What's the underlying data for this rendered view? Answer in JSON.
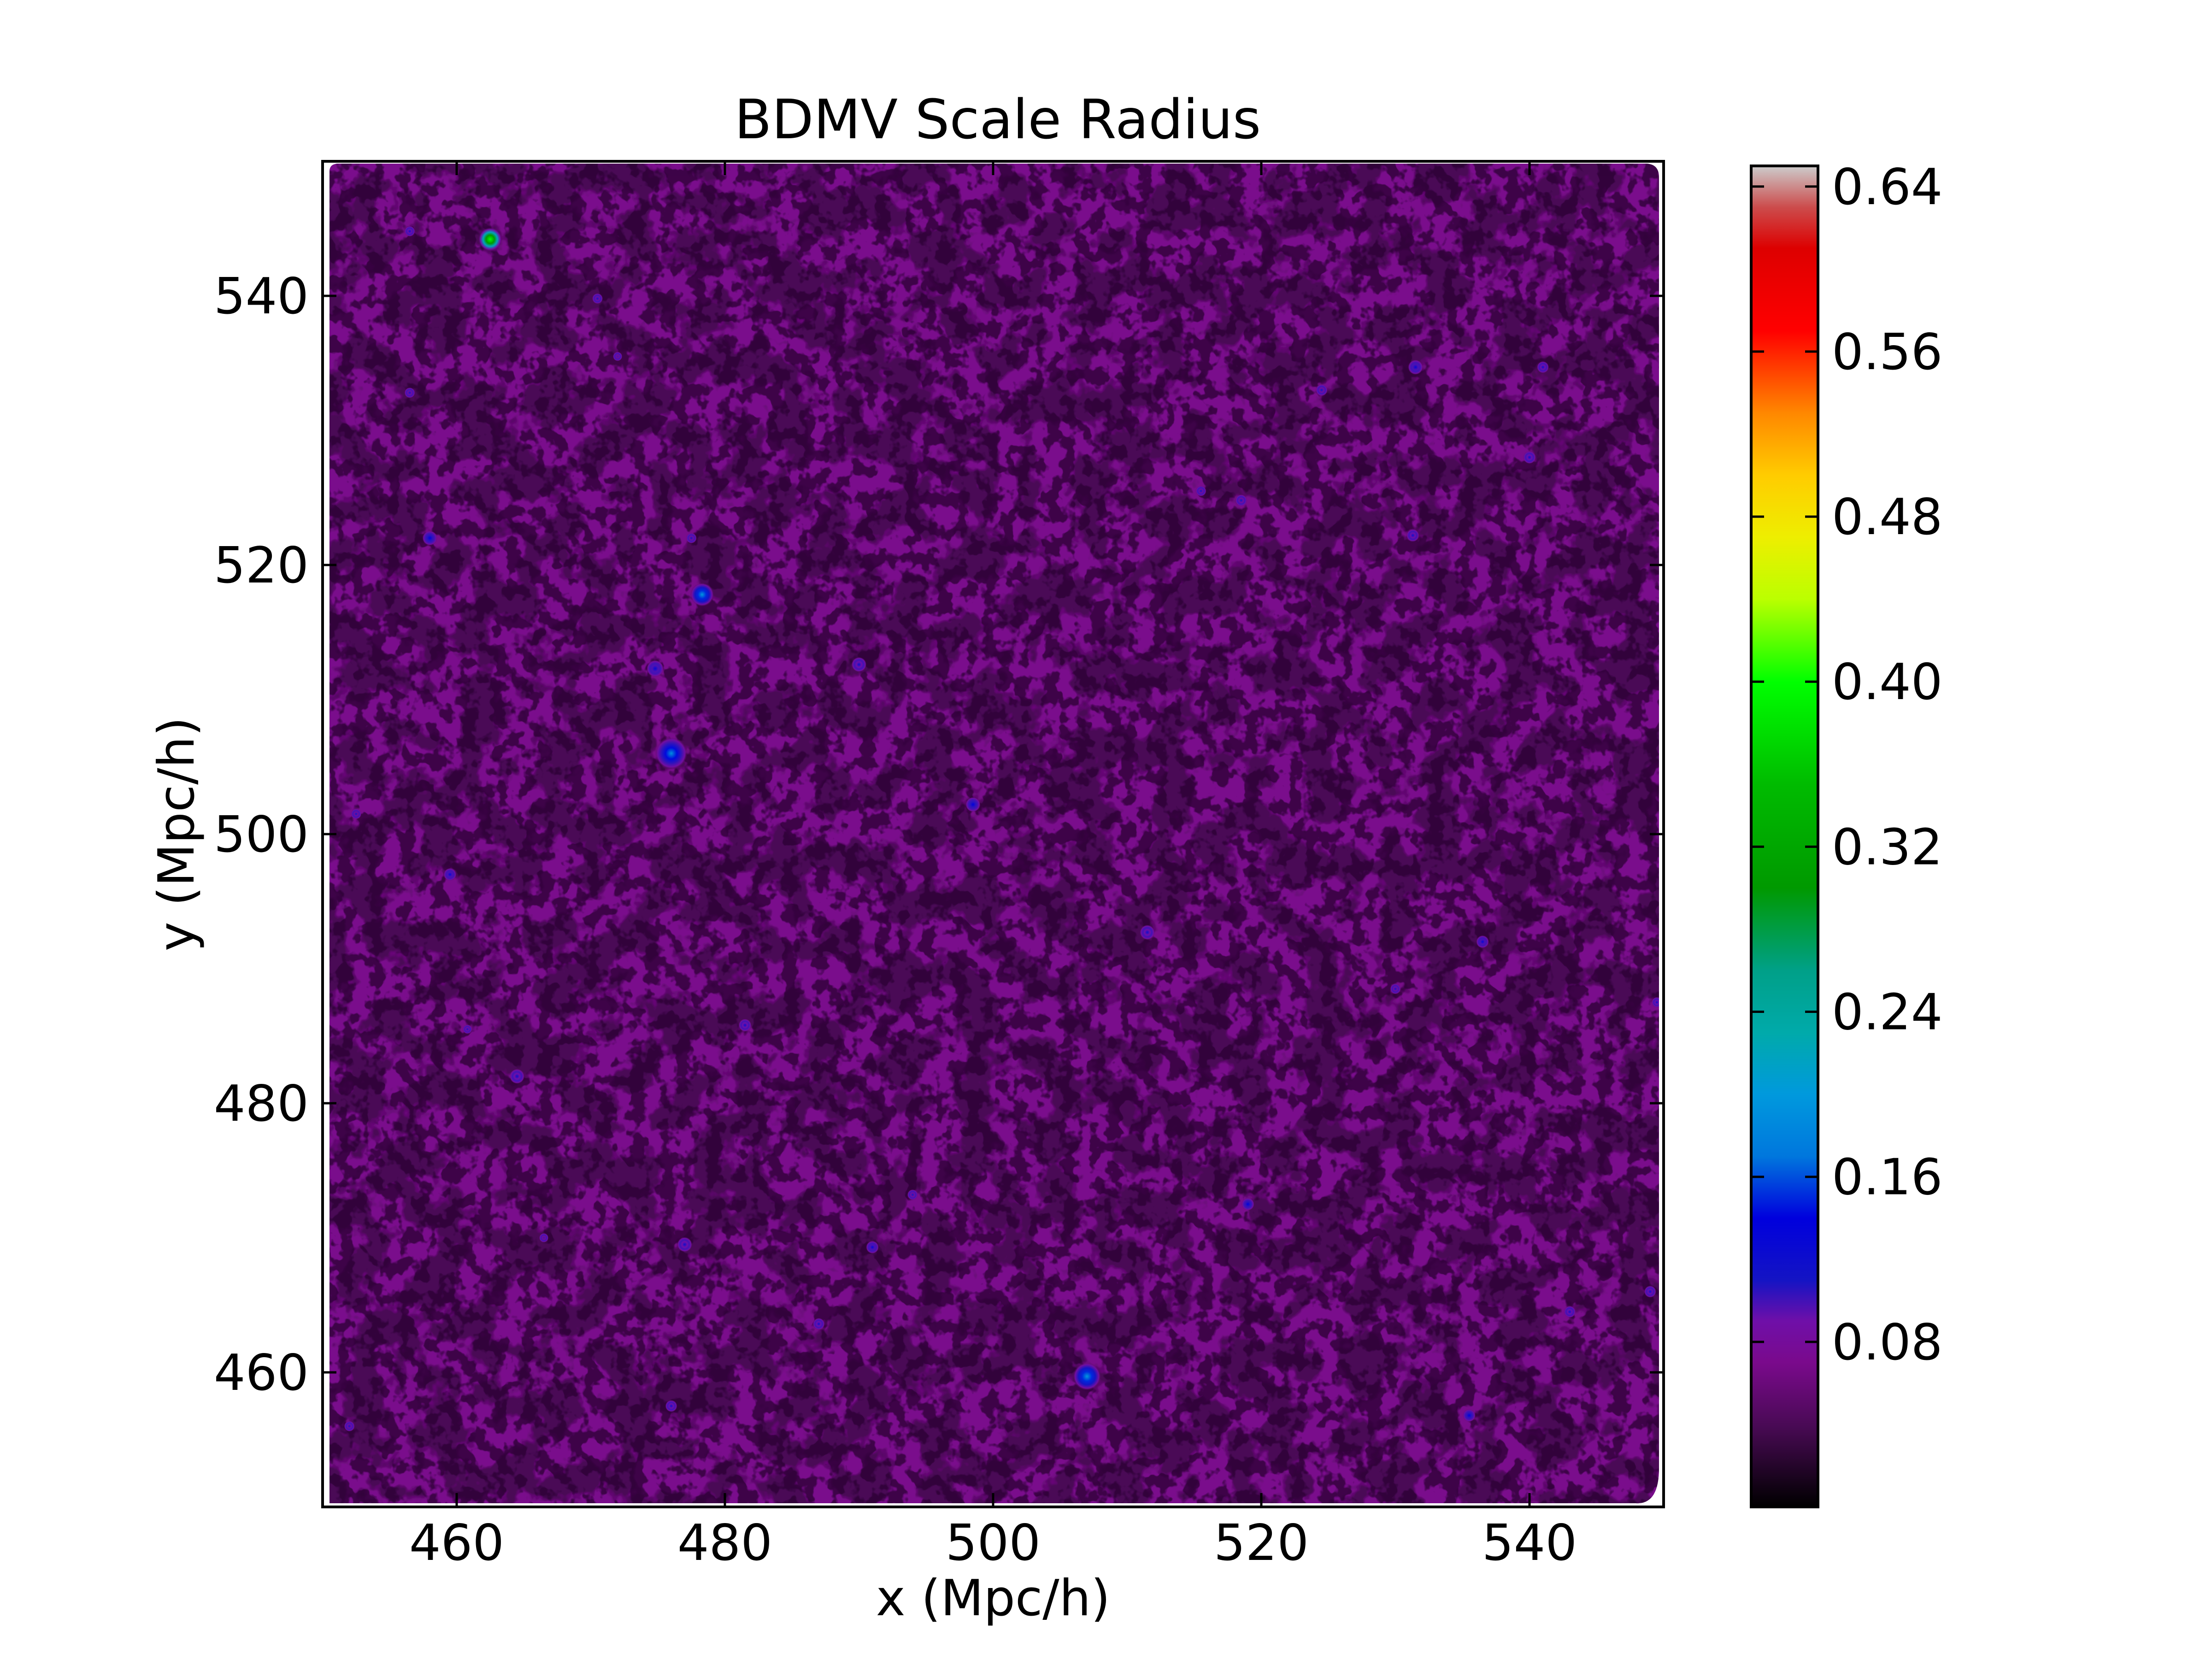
{
  "chart_data": {
    "type": "heatmap",
    "title": "BDMV Scale Radius",
    "xlabel": "x (Mpc/h)",
    "ylabel": "y (Mpc/h)",
    "xlim": [
      450,
      550
    ],
    "ylim": [
      450,
      550
    ],
    "xticks": [
      460,
      480,
      500,
      520,
      540
    ],
    "yticks": [
      460,
      480,
      500,
      520,
      540
    ],
    "grid": false,
    "colorbar": {
      "vmin": 0.0,
      "vmax": 0.65,
      "ticks": [
        0.08,
        0.16,
        0.24,
        0.32,
        0.4,
        0.48,
        0.56,
        0.64
      ],
      "tick_labels": [
        "0.08",
        "0.16",
        "0.24",
        "0.32",
        "0.40",
        "0.48",
        "0.56",
        "0.64"
      ],
      "colormap": "nipy_spectral",
      "colormap_stops": [
        {
          "v": 0.0,
          "color": "#000000"
        },
        {
          "v": 0.04,
          "color": "#4a0a56"
        },
        {
          "v": 0.07,
          "color": "#7a0a8c"
        },
        {
          "v": 0.09,
          "color": "#6f0fa8"
        },
        {
          "v": 0.11,
          "color": "#1414c4"
        },
        {
          "v": 0.14,
          "color": "#0000dd"
        },
        {
          "v": 0.17,
          "color": "#0077dd"
        },
        {
          "v": 0.2,
          "color": "#0099dd"
        },
        {
          "v": 0.23,
          "color": "#00aaaa"
        },
        {
          "v": 0.26,
          "color": "#00a088"
        },
        {
          "v": 0.3,
          "color": "#009900"
        },
        {
          "v": 0.35,
          "color": "#00bb00"
        },
        {
          "v": 0.4,
          "color": "#00ff00"
        },
        {
          "v": 0.44,
          "color": "#bbff00"
        },
        {
          "v": 0.47,
          "color": "#eeee00"
        },
        {
          "v": 0.5,
          "color": "#ffcc00"
        },
        {
          "v": 0.53,
          "color": "#ff8800"
        },
        {
          "v": 0.57,
          "color": "#ff0000"
        },
        {
          "v": 0.61,
          "color": "#dd0000"
        },
        {
          "v": 0.63,
          "color": "#cc4c4c"
        },
        {
          "v": 0.65,
          "color": "#cccccc"
        }
      ]
    },
    "field": {
      "background_value": 0.05,
      "halos": [
        {
          "x": 462.5,
          "y": 544.2,
          "r": 0.55,
          "peak": 0.4
        },
        {
          "x": 476.0,
          "y": 506.0,
          "r": 0.75,
          "peak": 0.19
        },
        {
          "x": 478.3,
          "y": 517.8,
          "r": 0.55,
          "peak": 0.2
        },
        {
          "x": 507.0,
          "y": 459.7,
          "r": 0.65,
          "peak": 0.2
        },
        {
          "x": 458.0,
          "y": 522.0,
          "r": 0.35,
          "peak": 0.14
        },
        {
          "x": 474.8,
          "y": 512.3,
          "r": 0.4,
          "peak": 0.13
        },
        {
          "x": 490.0,
          "y": 512.6,
          "r": 0.35,
          "peak": 0.12
        },
        {
          "x": 498.5,
          "y": 502.2,
          "r": 0.35,
          "peak": 0.14
        },
        {
          "x": 511.5,
          "y": 492.7,
          "r": 0.35,
          "peak": 0.12
        },
        {
          "x": 464.5,
          "y": 482.0,
          "r": 0.35,
          "peak": 0.12
        },
        {
          "x": 459.5,
          "y": 497.0,
          "r": 0.3,
          "peak": 0.13
        },
        {
          "x": 477.0,
          "y": 469.5,
          "r": 0.35,
          "peak": 0.12
        },
        {
          "x": 491.0,
          "y": 469.3,
          "r": 0.3,
          "peak": 0.13
        },
        {
          "x": 519.0,
          "y": 472.5,
          "r": 0.3,
          "peak": 0.14
        },
        {
          "x": 531.5,
          "y": 534.7,
          "r": 0.35,
          "peak": 0.13
        },
        {
          "x": 531.3,
          "y": 522.2,
          "r": 0.3,
          "peak": 0.12
        },
        {
          "x": 540.0,
          "y": 528.0,
          "r": 0.3,
          "peak": 0.12
        },
        {
          "x": 541.0,
          "y": 534.7,
          "r": 0.28,
          "peak": 0.12
        },
        {
          "x": 536.5,
          "y": 492.0,
          "r": 0.3,
          "peak": 0.13
        },
        {
          "x": 535.5,
          "y": 456.8,
          "r": 0.3,
          "peak": 0.14
        },
        {
          "x": 549.0,
          "y": 466.0,
          "r": 0.28,
          "peak": 0.12
        },
        {
          "x": 487.0,
          "y": 463.6,
          "r": 0.28,
          "peak": 0.12
        },
        {
          "x": 476.0,
          "y": 457.5,
          "r": 0.28,
          "peak": 0.12
        },
        {
          "x": 481.5,
          "y": 485.8,
          "r": 0.3,
          "peak": 0.12
        },
        {
          "x": 518.5,
          "y": 524.8,
          "r": 0.28,
          "peak": 0.11
        },
        {
          "x": 524.5,
          "y": 533.0,
          "r": 0.28,
          "peak": 0.11
        },
        {
          "x": 456.5,
          "y": 544.8,
          "r": 0.25,
          "peak": 0.12
        },
        {
          "x": 470.5,
          "y": 539.8,
          "r": 0.25,
          "peak": 0.11
        },
        {
          "x": 477.5,
          "y": 522.0,
          "r": 0.25,
          "peak": 0.11
        },
        {
          "x": 452.5,
          "y": 501.5,
          "r": 0.25,
          "peak": 0.11
        },
        {
          "x": 543.0,
          "y": 464.5,
          "r": 0.28,
          "peak": 0.12
        },
        {
          "x": 452.0,
          "y": 456.0,
          "r": 0.25,
          "peak": 0.11
        },
        {
          "x": 456.5,
          "y": 532.8,
          "r": 0.25,
          "peak": 0.11
        },
        {
          "x": 515.5,
          "y": 525.5,
          "r": 0.25,
          "peak": 0.11
        },
        {
          "x": 494.0,
          "y": 473.2,
          "r": 0.25,
          "peak": 0.11
        },
        {
          "x": 530.0,
          "y": 488.5,
          "r": 0.25,
          "peak": 0.11
        },
        {
          "x": 549.5,
          "y": 487.5,
          "r": 0.25,
          "peak": 0.12
        },
        {
          "x": 460.8,
          "y": 485.5,
          "r": 0.22,
          "peak": 0.11
        },
        {
          "x": 466.5,
          "y": 470.0,
          "r": 0.22,
          "peak": 0.1
        },
        {
          "x": 472.0,
          "y": 535.5,
          "r": 0.22,
          "peak": 0.1
        }
      ]
    }
  }
}
